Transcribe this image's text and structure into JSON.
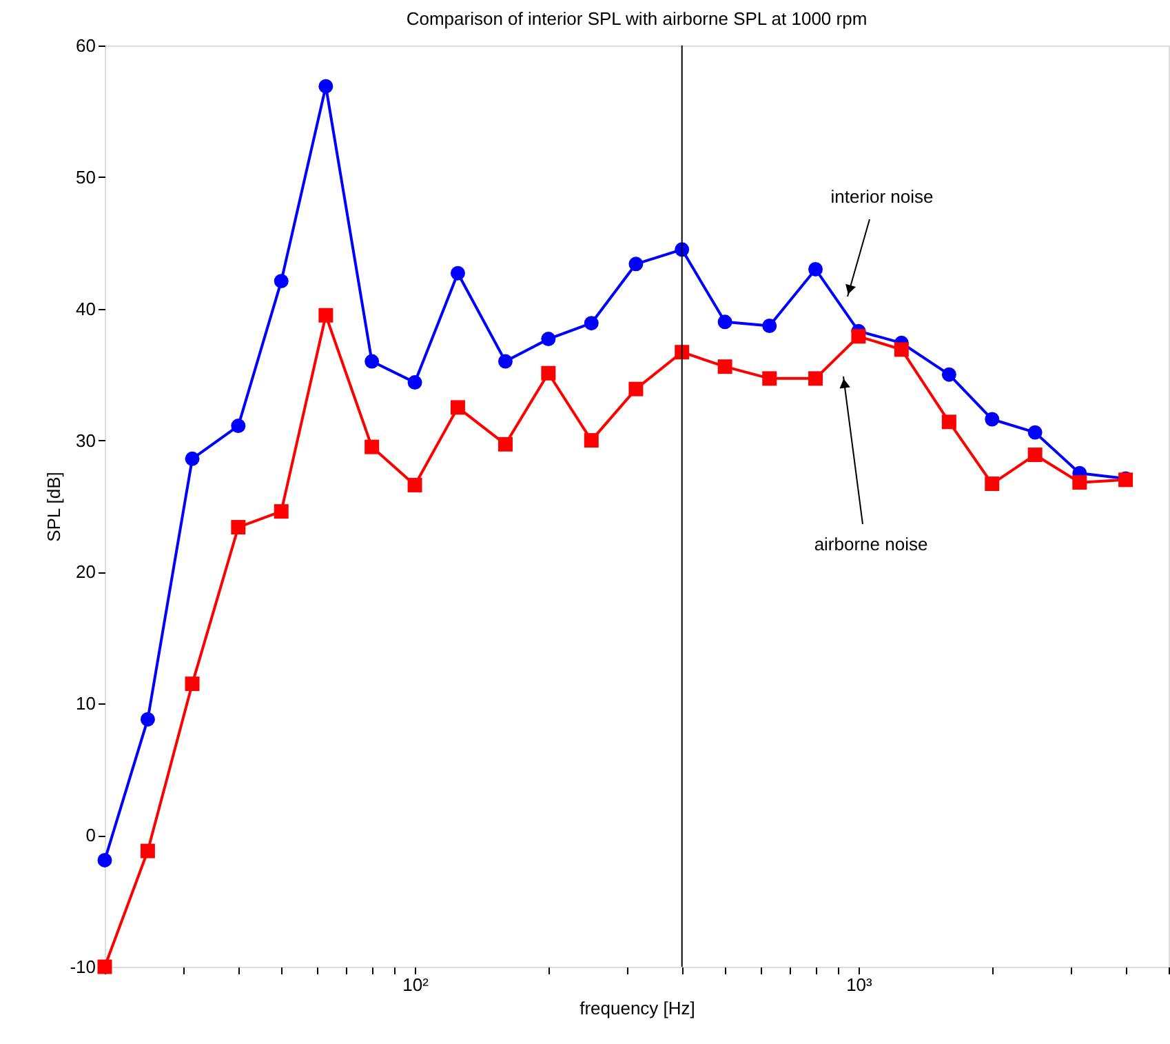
{
  "chart_data": {
    "type": "line",
    "title": "Comparison of interior SPL with airborne SPL at 1000 rpm",
    "xlabel": "frequency [Hz]",
    "ylabel": "SPL [dB]",
    "x": [
      20,
      25,
      31.5,
      40,
      50,
      63,
      80,
      100,
      125,
      160,
      200,
      250,
      315,
      400,
      500,
      630,
      800,
      1000,
      1250,
      1600,
      2000,
      2500,
      3150,
      4000
    ],
    "series": [
      {
        "color": "#0000ff",
        "marker": "circle",
        "values": [
          -1.9,
          8.8,
          28.6,
          31.1,
          42.1,
          56.9,
          36.0,
          34.4,
          42.7,
          36.0,
          37.7,
          38.9,
          43.4,
          44.5,
          39.0,
          38.7,
          43.0,
          38.3,
          37.4,
          35.0,
          31.6,
          30.6,
          27.5,
          27.1
        ]
      },
      {
        "color": "#ff0000",
        "marker": "square",
        "values": [
          -10,
          -1.2,
          11.5,
          23.4,
          24.6,
          39.5,
          29.5,
          26.6,
          32.5,
          29.7,
          35.1,
          30.0,
          33.9,
          36.7,
          35.6,
          34.7,
          34.7,
          37.9,
          36.9,
          31.4,
          26.7,
          28.9,
          26.8,
          27.0
        ]
      }
    ],
    "log": "x",
    "xlim": [
      20,
      5000
    ],
    "ylim": [
      -10,
      60
    ],
    "xticks": [
      {
        "value": 20,
        "label": null
      },
      {
        "value": 30,
        "label": null
      },
      {
        "value": 40,
        "label": null
      },
      {
        "value": 50,
        "label": null
      },
      {
        "value": 60,
        "label": null
      },
      {
        "value": 70,
        "label": null
      },
      {
        "value": 80,
        "label": null
      },
      {
        "value": 90,
        "label": null
      },
      {
        "value": 100,
        "label": "10²"
      },
      {
        "value": 200,
        "label": null
      },
      {
        "value": 300,
        "label": null
      },
      {
        "value": 400,
        "label": null
      },
      {
        "value": 500,
        "label": null
      },
      {
        "value": 600,
        "label": null
      },
      {
        "value": 700,
        "label": null
      },
      {
        "value": 800,
        "label": null
      },
      {
        "value": 900,
        "label": null
      },
      {
        "value": 1000,
        "label": "10³"
      },
      {
        "value": 2000,
        "label": null
      },
      {
        "value": 3000,
        "label": null
      },
      {
        "value": 4000,
        "label": null
      },
      {
        "value": 5000,
        "label": null
      }
    ],
    "yticks": [
      -10,
      0,
      10,
      20,
      30,
      40,
      50,
      60
    ],
    "ref_lines": [
      {
        "axis": "x",
        "value": 400,
        "color": "#000000"
      }
    ],
    "annotations": [
      "interior noise",
      "airborne noise"
    ],
    "grid": false,
    "line_style": "solid"
  }
}
